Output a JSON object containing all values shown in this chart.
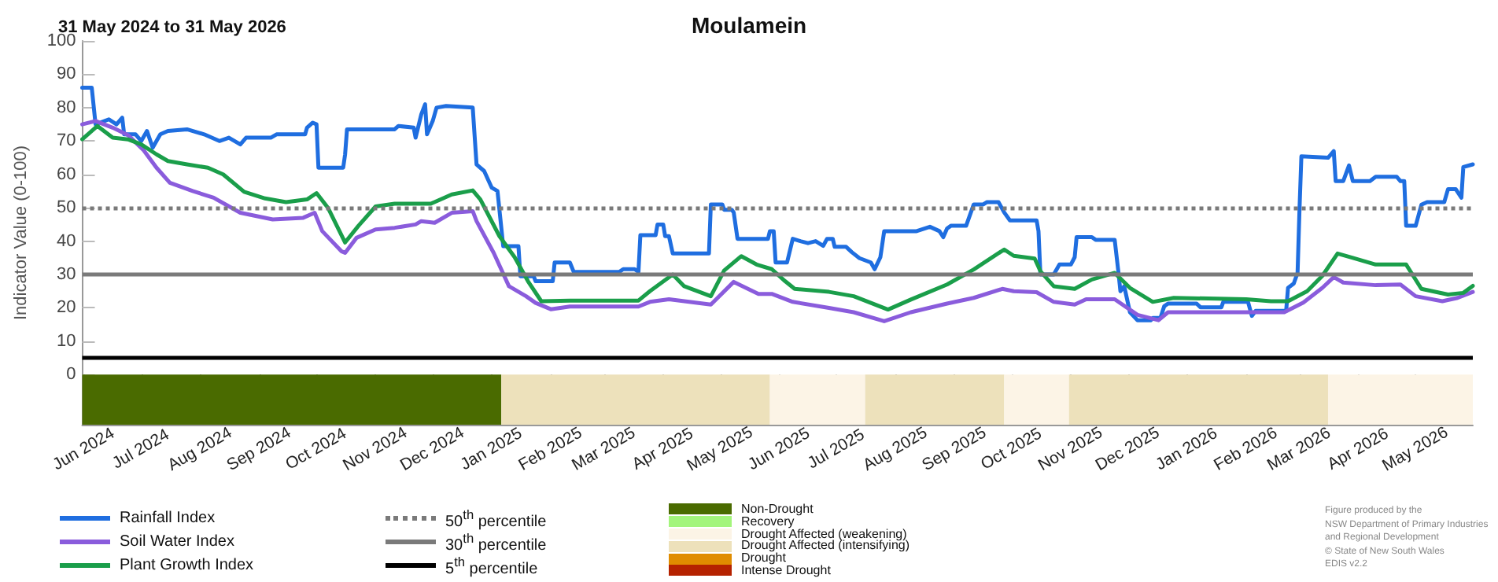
{
  "chart_data": [
    {
      "type": "line",
      "title": "Moulamein",
      "subtitle": "31 May 2024 to 31 May 2026",
      "ylabel": "Indicator Value (0-100)",
      "xlim": [
        "2024-05-31",
        "2026-05-31"
      ],
      "ylim": [
        -15,
        100
      ],
      "yticks": [
        0,
        10,
        20,
        30,
        40,
        50,
        60,
        70,
        80,
        90,
        100
      ],
      "legend": "bottom",
      "marker": "none",
      "line_style": "solid",
      "xticks": [
        {
          "value": "2024-06-01",
          "label": "Jun 2024"
        },
        {
          "value": "2024-07-01",
          "label": "Jul 2024"
        },
        {
          "value": "2024-08-01",
          "label": "Aug 2024"
        },
        {
          "value": "2024-09-01",
          "label": "Sep 2024"
        },
        {
          "value": "2024-10-01",
          "label": "Oct 2024"
        },
        {
          "value": "2024-11-01",
          "label": "Nov 2024"
        },
        {
          "value": "2024-12-01",
          "label": "Dec 2024"
        },
        {
          "value": "2025-01-01",
          "label": "Jan 2025"
        },
        {
          "value": "2025-02-01",
          "label": "Feb 2025"
        },
        {
          "value": "2025-03-01",
          "label": "Mar 2025"
        },
        {
          "value": "2025-04-01",
          "label": "Apr 2025"
        },
        {
          "value": "2025-05-01",
          "label": "May 2025"
        },
        {
          "value": "2025-06-01",
          "label": "Jun 2025"
        },
        {
          "value": "2025-07-01",
          "label": "Jul 2025"
        },
        {
          "value": "2025-08-01",
          "label": "Aug 2025"
        },
        {
          "value": "2025-09-01",
          "label": "Sep 2025"
        },
        {
          "value": "2025-10-01",
          "label": "Oct 2025"
        },
        {
          "value": "2025-11-01",
          "label": "Nov 2025"
        },
        {
          "value": "2025-12-01",
          "label": "Dec 2025"
        },
        {
          "value": "2026-01-01",
          "label": "Jan 2026"
        },
        {
          "value": "2026-02-01",
          "label": "Feb 2026"
        },
        {
          "value": "2026-03-01",
          "label": "Mar 2026"
        },
        {
          "value": "2026-04-01",
          "label": "Apr 2026"
        },
        {
          "value": "2026-05-01",
          "label": "May 2026"
        }
      ],
      "bands": [
        {
          "axis": "x",
          "from": "2024-05-31",
          "to": "2025-01-06",
          "color": "#4a6b00"
        },
        {
          "axis": "x",
          "from": "2025-01-06",
          "to": "2025-05-27",
          "color": "#ede1bb"
        },
        {
          "axis": "x",
          "from": "2025-05-27",
          "to": "2025-07-16",
          "color": "#fcf4e6"
        },
        {
          "axis": "x",
          "from": "2025-07-16",
          "to": "2025-09-27",
          "color": "#ede1bb"
        },
        {
          "axis": "x",
          "from": "2025-09-27",
          "to": "2025-10-31",
          "color": "#fcf4e6"
        },
        {
          "axis": "x",
          "from": "2025-10-31",
          "to": "2026-03-16",
          "color": "#ede1bb"
        },
        {
          "axis": "x",
          "from": "2026-03-16",
          "to": "2026-05-31",
          "color": "#fcf4e6"
        }
      ],
      "series": [
        {
          "name": "Rainfall Index",
          "color": "#1f6ee0",
          "x": [
            "2024-05-31",
            "2024-06-05",
            "2024-06-07",
            "2024-06-14",
            "2024-06-18",
            "2024-06-21",
            "2024-06-22",
            "2024-06-28",
            "2024-07-01",
            "2024-07-04",
            "2024-07-07",
            "2024-07-11",
            "2024-07-15",
            "2024-07-25",
            "2024-08-03",
            "2024-08-11",
            "2024-08-16",
            "2024-08-22",
            "2024-08-25",
            "2024-09-07",
            "2024-09-10",
            "2024-09-25",
            "2024-09-26",
            "2024-09-29",
            "2024-10-01",
            "2024-10-02",
            "2024-10-15",
            "2024-10-16",
            "2024-10-17",
            "2024-11-11",
            "2024-11-13",
            "2024-11-21",
            "2024-11-22",
            "2024-11-25",
            "2024-11-27",
            "2024-11-28",
            "2024-12-01",
            "2024-12-03",
            "2024-12-08",
            "2024-12-22",
            "2024-12-24",
            "2024-12-28",
            "2025-01-01",
            "2025-01-04",
            "2025-01-07",
            "2025-01-15",
            "2025-01-16",
            "2025-01-23",
            "2025-01-24",
            "2025-02-02",
            "2025-02-03",
            "2025-02-11",
            "2025-02-13",
            "2025-03-09",
            "2025-03-11",
            "2025-03-17",
            "2025-03-19",
            "2025-03-20",
            "2025-03-28",
            "2025-03-29",
            "2025-04-01",
            "2025-04-02",
            "2025-04-04",
            "2025-04-06",
            "2025-04-25",
            "2025-04-26",
            "2025-05-02",
            "2025-05-03",
            "2025-05-07",
            "2025-05-08",
            "2025-05-10",
            "2025-05-26",
            "2025-05-27",
            "2025-05-29",
            "2025-05-30",
            "2025-06-05",
            "2025-06-08",
            "2025-06-12",
            "2025-06-16",
            "2025-06-20",
            "2025-06-24",
            "2025-06-26",
            "2025-06-29",
            "2025-06-30",
            "2025-07-06",
            "2025-07-09",
            "2025-07-13",
            "2025-07-19",
            "2025-07-21",
            "2025-07-24",
            "2025-07-26",
            "2025-08-12",
            "2025-08-19",
            "2025-08-24",
            "2025-08-26",
            "2025-08-28",
            "2025-08-30",
            "2025-09-07",
            "2025-09-11",
            "2025-09-16",
            "2025-09-18",
            "2025-09-24",
            "2025-09-27",
            "2025-09-30",
            "2025-10-14",
            "2025-10-15",
            "2025-10-16",
            "2025-10-23",
            "2025-10-26",
            "2025-11-01",
            "2025-11-03",
            "2025-11-04",
            "2025-11-12",
            "2025-11-14",
            "2025-11-24",
            "2025-11-26",
            "2025-11-27",
            "2025-11-29",
            "2025-12-02",
            "2025-12-06",
            "2025-12-13",
            "2025-12-14",
            "2025-12-18",
            "2025-12-20",
            "2025-12-22",
            "2026-01-06",
            "2026-01-08",
            "2026-01-19",
            "2026-01-20",
            "2026-02-02",
            "2026-02-04",
            "2026-02-06",
            "2026-02-22",
            "2026-02-23",
            "2026-02-26",
            "2026-02-28",
            "2026-03-01",
            "2026-03-02",
            "2026-03-16",
            "2026-03-19",
            "2026-03-20",
            "2026-03-24",
            "2026-03-27",
            "2026-03-29",
            "2026-04-07",
            "2026-04-10",
            "2026-04-21",
            "2026-04-23",
            "2026-04-25",
            "2026-04-26",
            "2026-05-01",
            "2026-05-04",
            "2026-05-07",
            "2026-05-16",
            "2026-05-18",
            "2026-05-22",
            "2026-05-25",
            "2026-05-26",
            "2026-05-31"
          ],
          "values": [
            86,
            86,
            75,
            76.5,
            75,
            77,
            72,
            72,
            70,
            73,
            68,
            72,
            73,
            73.5,
            72,
            70,
            71,
            69,
            71,
            71,
            72,
            72,
            74,
            75.5,
            75,
            62,
            62,
            66,
            73.5,
            73.5,
            74.5,
            74,
            71,
            78,
            81,
            72,
            76,
            80,
            80.5,
            80,
            63,
            61,
            56,
            55,
            38.5,
            38.5,
            29.5,
            29.5,
            28,
            28,
            33.6,
            33.6,
            30.8,
            30.8,
            31.6,
            31.6,
            30.8,
            41.8,
            41.8,
            45,
            45,
            41.5,
            41.5,
            36.3,
            36.3,
            51,
            51,
            49.4,
            49.4,
            48.6,
            40.7,
            40.7,
            43,
            43,
            33.6,
            33.6,
            40.7,
            40,
            39.4,
            40,
            38.6,
            40.7,
            40.7,
            38.3,
            38.3,
            36.7,
            34.9,
            33.6,
            31.6,
            35.2,
            43,
            43,
            44.3,
            43,
            41.2,
            43.8,
            44.6,
            44.6,
            51,
            51,
            51.7,
            51.7,
            48.6,
            46.2,
            46.2,
            43,
            30,
            30,
            33,
            33,
            35.2,
            41.2,
            41.2,
            40.4,
            40.4,
            30.5,
            25,
            26.5,
            18.7,
            16.3,
            16.3,
            17,
            17,
            20.5,
            21.3,
            21.3,
            20.2,
            20.2,
            21.8,
            21.8,
            17.6,
            19.1,
            19.1,
            26,
            27.3,
            30.5,
            49.3,
            65.4,
            65,
            67,
            58,
            58,
            62.7,
            58,
            58,
            59.3,
            59.3,
            58,
            58,
            44.6,
            44.6,
            50.9,
            51.7,
            51.7,
            55.6,
            55.6,
            53,
            62.2,
            63
          ]
        },
        {
          "name": "Soil Water Index",
          "color": "#8a5cdc",
          "x": [
            "2024-05-31",
            "2024-06-07",
            "2024-06-16",
            "2024-06-24",
            "2024-07-02",
            "2024-07-09",
            "2024-07-16",
            "2024-07-28",
            "2024-08-08",
            "2024-08-22",
            "2024-09-08",
            "2024-09-24",
            "2024-09-30",
            "2024-10-04",
            "2024-10-14",
            "2024-10-16",
            "2024-10-22",
            "2024-11-01",
            "2024-11-11",
            "2024-11-22",
            "2024-11-25",
            "2024-12-02",
            "2024-12-11",
            "2024-12-22",
            "2024-12-24",
            "2025-01-02",
            "2025-01-10",
            "2025-01-19",
            "2025-01-24",
            "2025-02-01",
            "2025-02-11",
            "2025-03-19",
            "2025-03-25",
            "2025-04-04",
            "2025-04-26",
            "2025-05-08",
            "2025-05-21",
            "2025-05-28",
            "2025-06-08",
            "2025-06-27",
            "2025-07-10",
            "2025-07-26",
            "2025-08-09",
            "2025-08-28",
            "2025-09-11",
            "2025-09-26",
            "2025-10-02",
            "2025-10-14",
            "2025-10-23",
            "2025-11-03",
            "2025-11-09",
            "2025-11-24",
            "2025-12-06",
            "2025-12-17",
            "2025-12-22",
            "2026-02-04",
            "2026-02-21",
            "2026-03-03",
            "2026-03-13",
            "2026-03-19",
            "2026-03-24",
            "2026-04-10",
            "2026-04-23",
            "2026-05-01",
            "2026-05-15",
            "2026-05-23",
            "2026-05-31"
          ],
          "values": [
            75,
            76,
            74,
            71.8,
            67.4,
            62,
            57.5,
            55,
            53,
            48.5,
            46.5,
            47,
            48.5,
            43,
            37,
            36.5,
            41,
            43.5,
            44,
            45,
            46,
            45.5,
            48.5,
            49,
            46,
            36.5,
            26.5,
            23.5,
            21.5,
            19.6,
            20.4,
            20.4,
            21.8,
            22.6,
            21,
            27.8,
            24.2,
            24.2,
            21.8,
            20,
            18.7,
            16,
            18.7,
            21.3,
            23,
            25.7,
            25,
            24.7,
            21.8,
            21,
            22.6,
            22.6,
            17.9,
            16.3,
            18.7,
            18.7,
            18.7,
            21.6,
            26,
            29.2,
            27.6,
            26.8,
            27,
            23.5,
            22,
            23,
            24.8
          ]
        },
        {
          "name": "Plant Growth Index",
          "color": "#1a9e4a",
          "x": [
            "2024-05-31",
            "2024-06-08",
            "2024-06-16",
            "2024-06-24",
            "2024-07-01",
            "2024-07-09",
            "2024-07-15",
            "2024-07-25",
            "2024-08-05",
            "2024-08-13",
            "2024-08-24",
            "2024-09-04",
            "2024-09-15",
            "2024-09-26",
            "2024-10-01",
            "2024-10-07",
            "2024-10-16",
            "2024-10-23",
            "2024-11-01",
            "2024-11-11",
            "2024-11-30",
            "2024-12-11",
            "2024-12-22",
            "2024-12-26",
            "2025-01-05",
            "2025-01-13",
            "2025-01-20",
            "2025-01-27",
            "2025-02-11",
            "2025-03-19",
            "2025-03-25",
            "2025-04-06",
            "2025-04-12",
            "2025-04-26",
            "2025-05-03",
            "2025-05-12",
            "2025-05-20",
            "2025-05-28",
            "2025-06-04",
            "2025-06-09",
            "2025-06-27",
            "2025-07-10",
            "2025-07-28",
            "2025-08-09",
            "2025-08-28",
            "2025-09-11",
            "2025-09-27",
            "2025-10-02",
            "2025-10-13",
            "2025-10-16",
            "2025-10-23",
            "2025-11-03",
            "2025-11-12",
            "2025-11-24",
            "2025-12-02",
            "2025-12-14",
            "2025-12-25",
            "2026-02-01",
            "2026-02-14",
            "2026-02-23",
            "2026-03-05",
            "2026-03-13",
            "2026-03-21",
            "2026-03-29",
            "2026-04-10",
            "2026-04-26",
            "2026-05-04",
            "2026-05-18",
            "2026-05-26",
            "2026-05-31"
          ],
          "values": [
            70.5,
            74.5,
            71,
            70.5,
            69,
            66,
            64,
            63,
            62,
            60,
            54.8,
            52.8,
            51.7,
            52.5,
            54.4,
            50,
            39.6,
            44.6,
            50.4,
            51.2,
            51.2,
            54,
            55.2,
            52.5,
            41.5,
            35.2,
            28,
            22,
            22.2,
            22.2,
            25,
            30,
            26.5,
            23.5,
            31.2,
            35.5,
            33,
            31.6,
            28,
            25.7,
            24.8,
            23.5,
            19.5,
            22.5,
            27,
            31.5,
            37.5,
            35.6,
            34.8,
            31,
            26.5,
            25.7,
            28.5,
            30.5,
            26,
            21.8,
            23,
            22.6,
            22,
            22,
            25,
            29.6,
            36.3,
            35,
            33,
            33,
            25.7,
            24,
            24.5,
            26.6
          ]
        }
      ],
      "ref_lines": [
        {
          "axis": "y",
          "value": 50,
          "label": "50$^{th}$ percentile",
          "color": "#7a7a7a",
          "line_style": "dotted"
        },
        {
          "axis": "y",
          "value": 30,
          "label": "30$^{th}$ percentile",
          "color": "#7a7a7a",
          "line_style": "solid"
        },
        {
          "axis": "y",
          "value": 5,
          "label": "5$^{th}$ percentile",
          "color": "#000000",
          "line_style": "solid"
        }
      ],
      "annotations": [
        "Figure produced by the\nNSW Department of Primary Industries\nand Regional Development\n© State of New South Wales\nEDIS v2.2"
      ]
    },
    {
      "type": "other",
      "categories": [
        "Non-Drought",
        "Recovery",
        "Drought Affected (weakening)",
        "Drought Affected (intensifying)",
        "Drought",
        "Intense Drought"
      ],
      "colors": [
        "#4a6b00",
        "#a3f57c",
        "#fcf4e6",
        "#ede1bb",
        "#e08c00",
        "#b52200"
      ]
    }
  ]
}
